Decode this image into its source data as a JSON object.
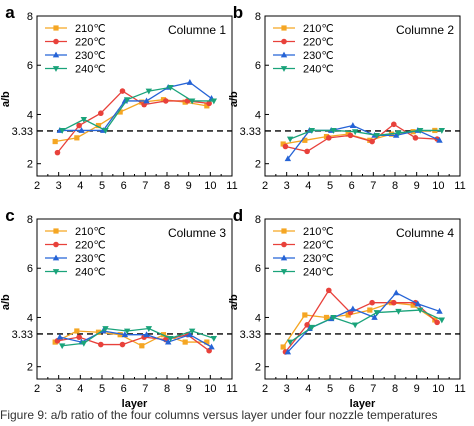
{
  "figure": {
    "caption": "Figure 9: a/b ratio of the four columns versus layer under four nozzle temperatures"
  },
  "chart_data": [
    {
      "type": "line",
      "panel_label": "a",
      "title": "Columne 1",
      "xlabel": "",
      "ylabel": "a/b",
      "xlim": [
        2,
        11
      ],
      "ylim": [
        1.5,
        8
      ],
      "xticks": [
        2,
        3,
        4,
        5,
        6,
        7,
        8,
        9,
        10,
        11
      ],
      "yticks": [
        2,
        3.33,
        4,
        6,
        8
      ],
      "ytick_labels": [
        "2",
        "3.33",
        "4",
        "6",
        "8"
      ],
      "reference_line": 3.33,
      "legend_position": "top-left",
      "grid": false,
      "x": [
        3,
        4,
        5,
        6,
        7,
        8,
        9,
        10
      ],
      "series": [
        {
          "name": "210℃",
          "color": "#f5a623",
          "marker": "square",
          "values": [
            2.9,
            3.05,
            3.55,
            4.1,
            4.5,
            4.6,
            4.5,
            4.35
          ]
        },
        {
          "name": "220℃",
          "color": "#e8413b",
          "marker": "circle",
          "values": [
            2.45,
            3.55,
            4.05,
            4.95,
            4.4,
            4.55,
            4.55,
            4.45
          ]
        },
        {
          "name": "230℃",
          "color": "#2563d6",
          "marker": "triangle-up",
          "values": [
            3.35,
            3.35,
            3.35,
            4.55,
            4.55,
            5.1,
            5.3,
            4.65
          ]
        },
        {
          "name": "240℃",
          "color": "#1aa37a",
          "marker": "triangle-down",
          "values": [
            3.35,
            3.8,
            3.35,
            4.6,
            4.95,
            5.1,
            4.55,
            4.55
          ]
        }
      ]
    },
    {
      "type": "line",
      "panel_label": "b",
      "title": "Columne 2",
      "xlabel": "",
      "ylabel": "a/b",
      "xlim": [
        2,
        11
      ],
      "ylim": [
        1.5,
        8
      ],
      "xticks": [
        2,
        3,
        4,
        5,
        6,
        7,
        8,
        9,
        10,
        11
      ],
      "yticks": [
        2,
        3.33,
        4,
        6,
        8
      ],
      "ytick_labels": [
        "2",
        "3.33",
        "4",
        "6",
        "8"
      ],
      "reference_line": 3.33,
      "legend_position": "top-left",
      "grid": false,
      "x": [
        3,
        4,
        5,
        6,
        7,
        8,
        9,
        10
      ],
      "series": [
        {
          "name": "210℃",
          "color": "#f5a623",
          "marker": "square",
          "values": [
            2.8,
            2.95,
            3.1,
            3.2,
            2.95,
            3.2,
            3.3,
            3.35
          ]
        },
        {
          "name": "220℃",
          "color": "#e8413b",
          "marker": "circle",
          "values": [
            2.7,
            2.5,
            3.05,
            3.15,
            2.9,
            3.6,
            3.05,
            3.0
          ]
        },
        {
          "name": "230℃",
          "color": "#2563d6",
          "marker": "triangle-up",
          "values": [
            2.2,
            3.35,
            3.35,
            3.55,
            3.15,
            3.15,
            3.35,
            2.95
          ]
        },
        {
          "name": "240℃",
          "color": "#1aa37a",
          "marker": "triangle-down",
          "values": [
            3.0,
            3.35,
            3.35,
            3.3,
            3.15,
            3.25,
            3.35,
            3.35
          ]
        }
      ]
    },
    {
      "type": "line",
      "panel_label": "c",
      "title": "Columne 3",
      "xlabel": "layer",
      "ylabel": "a/b",
      "xlim": [
        2,
        11
      ],
      "ylim": [
        1.5,
        8
      ],
      "xticks": [
        2,
        3,
        4,
        5,
        6,
        7,
        8,
        9,
        10,
        11
      ],
      "yticks": [
        2,
        3.33,
        4,
        6,
        8
      ],
      "ytick_labels": [
        "2",
        "3.33",
        "4",
        "6",
        "8"
      ],
      "reference_line": 3.33,
      "legend_position": "top-left",
      "grid": false,
      "x": [
        3,
        4,
        5,
        6,
        7,
        8,
        9,
        10
      ],
      "series": [
        {
          "name": "210℃",
          "color": "#f5a623",
          "marker": "square",
          "values": [
            3.0,
            3.45,
            3.4,
            3.3,
            2.85,
            3.3,
            3.0,
            3.0
          ]
        },
        {
          "name": "220℃",
          "color": "#e8413b",
          "marker": "circle",
          "values": [
            3.05,
            3.2,
            2.9,
            2.9,
            3.2,
            3.1,
            3.3,
            2.65
          ]
        },
        {
          "name": "230℃",
          "color": "#2563d6",
          "marker": "triangle-up",
          "values": [
            3.2,
            3.0,
            3.45,
            3.3,
            3.3,
            3.0,
            3.3,
            2.8
          ]
        },
        {
          "name": "240℃",
          "color": "#1aa37a",
          "marker": "triangle-down",
          "values": [
            2.85,
            2.95,
            3.55,
            3.45,
            3.55,
            3.15,
            3.45,
            3.15
          ]
        }
      ]
    },
    {
      "type": "line",
      "panel_label": "d",
      "title": "Columne 4",
      "xlabel": "layer",
      "ylabel": "a/b",
      "xlim": [
        2,
        11
      ],
      "ylim": [
        1.5,
        8
      ],
      "xticks": [
        2,
        3,
        4,
        5,
        6,
        7,
        8,
        9,
        10,
        11
      ],
      "yticks": [
        2,
        3.33,
        4,
        6,
        8
      ],
      "ytick_labels": [
        "2",
        "3.33",
        "4",
        "6",
        "8"
      ],
      "reference_line": 3.33,
      "legend_position": "top-left",
      "grid": false,
      "x": [
        3,
        4,
        5,
        6,
        7,
        8,
        9,
        10
      ],
      "series": [
        {
          "name": "210℃",
          "color": "#f5a623",
          "marker": "square",
          "values": [
            2.8,
            4.1,
            4.0,
            4.1,
            4.3,
            4.6,
            4.5,
            3.9
          ]
        },
        {
          "name": "220℃",
          "color": "#e8413b",
          "marker": "circle",
          "values": [
            2.6,
            3.7,
            5.1,
            4.2,
            4.6,
            4.6,
            4.6,
            3.8
          ]
        },
        {
          "name": "230℃",
          "color": "#2563d6",
          "marker": "triangle-up",
          "values": [
            2.6,
            3.55,
            3.95,
            4.35,
            4.0,
            5.0,
            4.55,
            4.25
          ]
        },
        {
          "name": "240℃",
          "color": "#1aa37a",
          "marker": "triangle-down",
          "values": [
            3.0,
            3.6,
            4.0,
            3.7,
            4.2,
            4.25,
            4.3,
            3.9
          ]
        }
      ]
    }
  ]
}
